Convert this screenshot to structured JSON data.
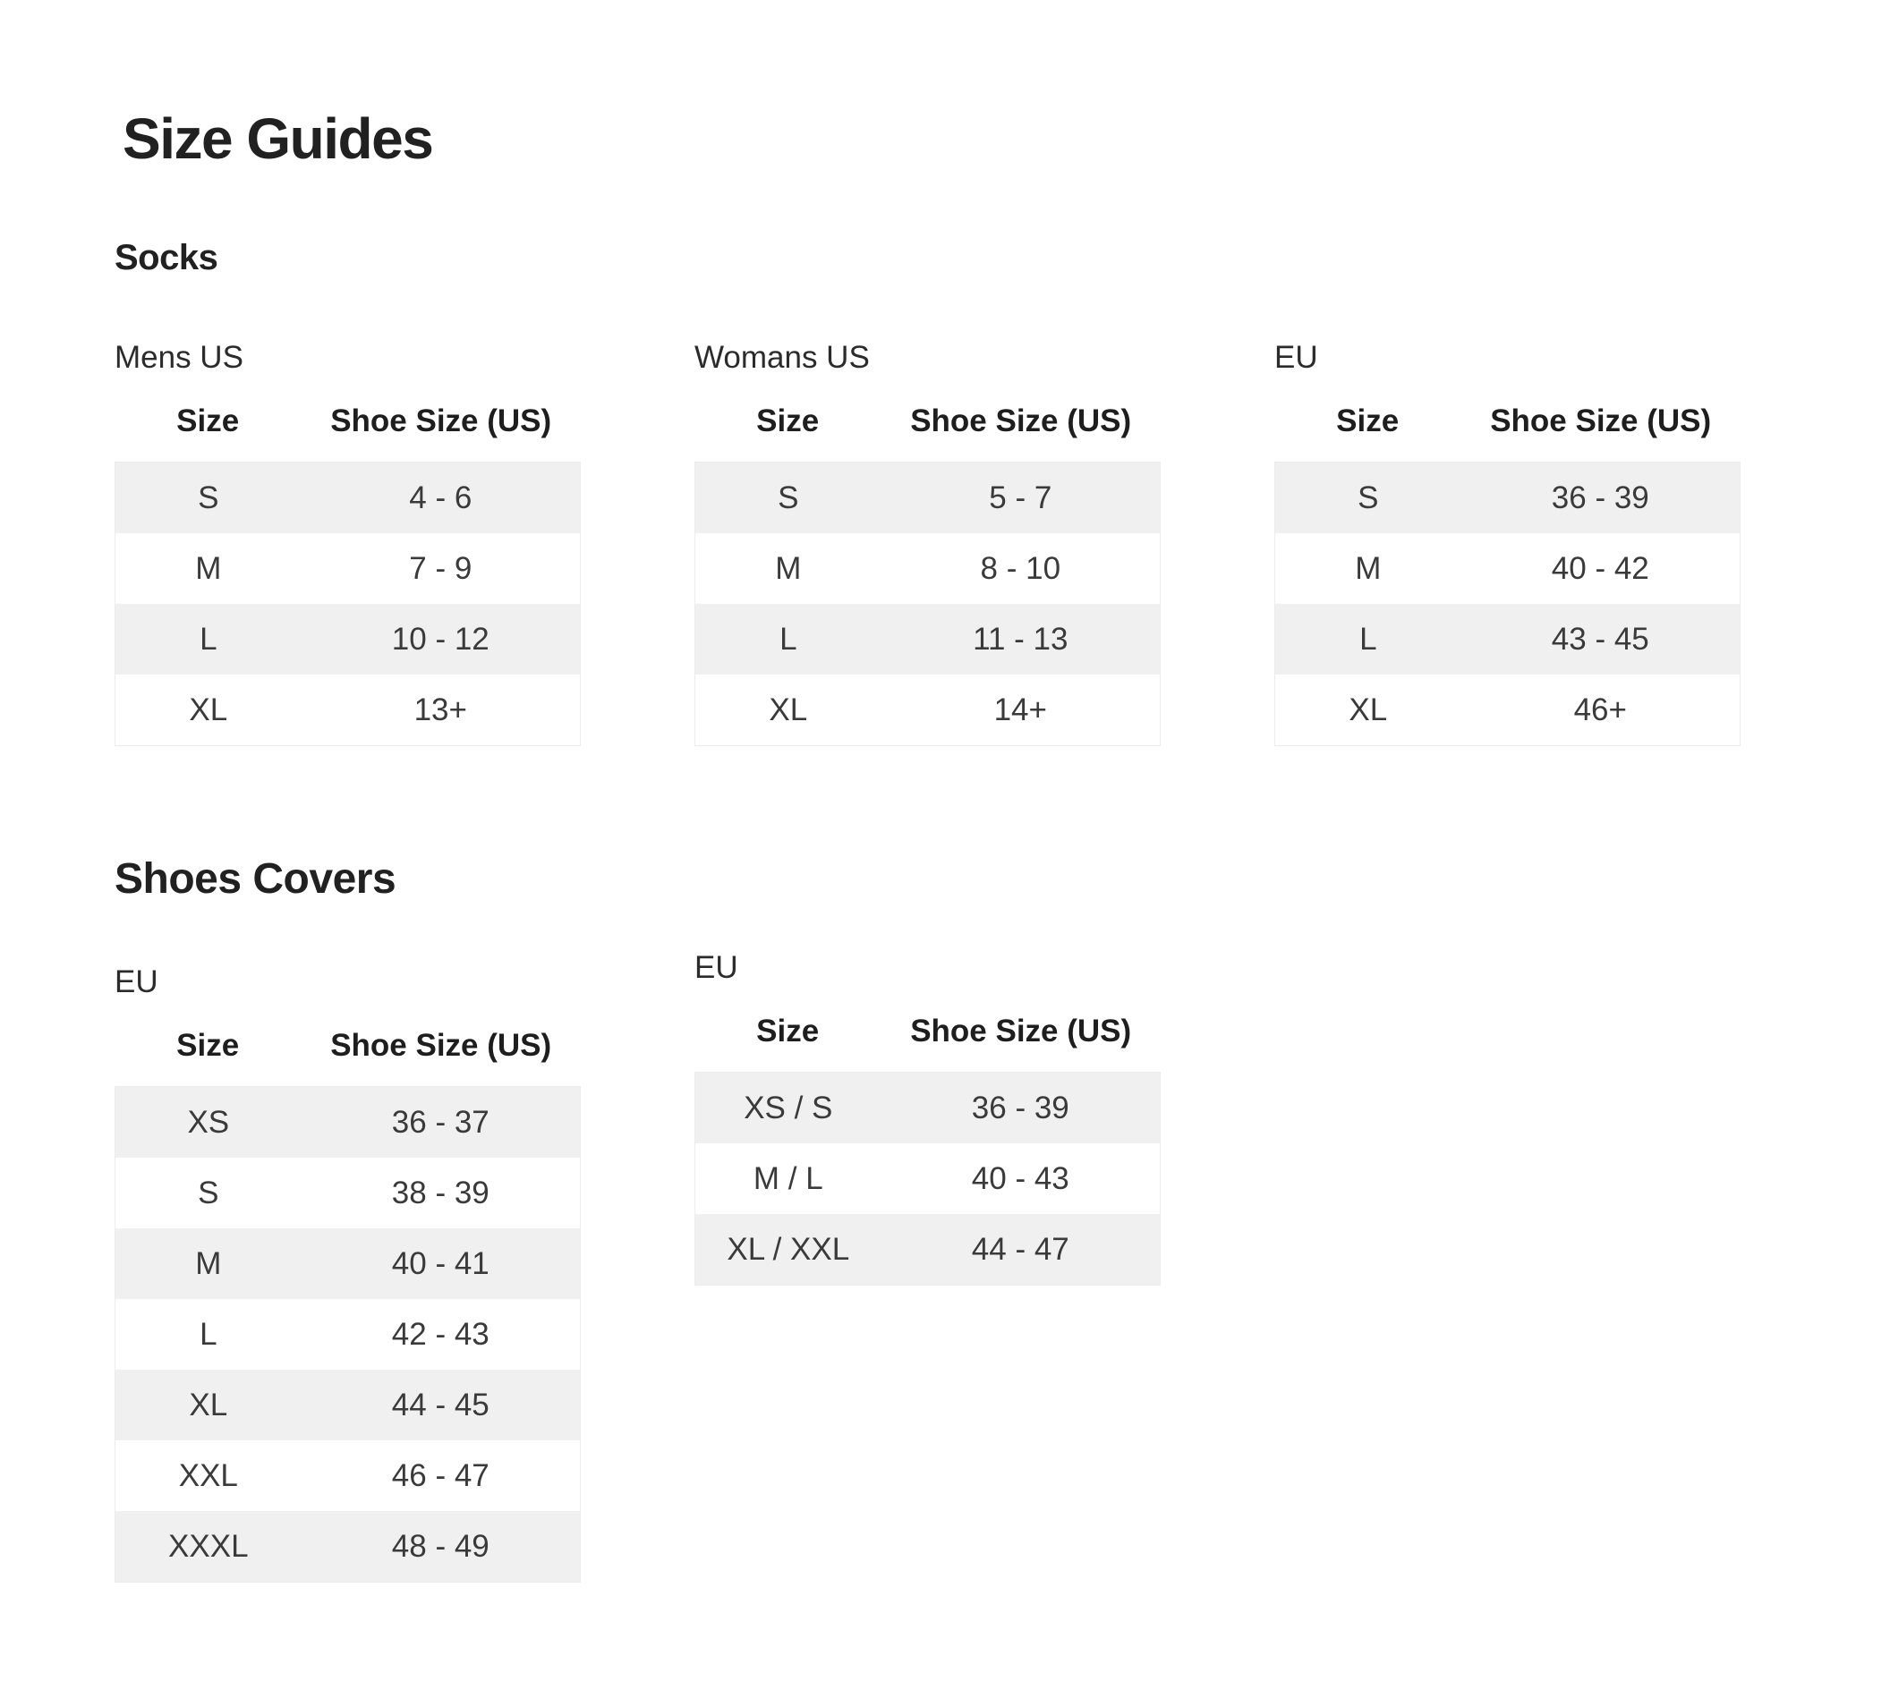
{
  "page": {
    "title": "Size Guides"
  },
  "colors": {
    "stripe": "#f0f0f0",
    "border": "#ececec",
    "heading_text": "#212121",
    "cell_text": "#3a3a3a"
  },
  "sections": [
    {
      "heading": "Socks",
      "tables": [
        {
          "caption": "Mens US",
          "columns": [
            "Size",
            "Shoe Size (US)"
          ],
          "rows": [
            [
              "S",
              "4 - 6"
            ],
            [
              "M",
              "7 - 9"
            ],
            [
              "L",
              "10 - 12"
            ],
            [
              "XL",
              "13+"
            ]
          ]
        },
        {
          "caption": "Womans US",
          "columns": [
            "Size",
            "Shoe Size (US)"
          ],
          "rows": [
            [
              "S",
              "5 - 7"
            ],
            [
              "M",
              "8 - 10"
            ],
            [
              "L",
              "11 - 13"
            ],
            [
              "XL",
              "14+"
            ]
          ]
        },
        {
          "caption": "EU",
          "columns": [
            "Size",
            "Shoe Size (US)"
          ],
          "rows": [
            [
              "S",
              "36 - 39"
            ],
            [
              "M",
              "40 - 42"
            ],
            [
              "L",
              "43 - 45"
            ],
            [
              "XL",
              "46+"
            ]
          ]
        }
      ]
    },
    {
      "heading": "Shoes Covers",
      "tables": [
        {
          "caption": "EU",
          "columns": [
            "Size",
            "Shoe Size (US)"
          ],
          "rows": [
            [
              "XS",
              "36 - 37"
            ],
            [
              "S",
              "38 - 39"
            ],
            [
              "M",
              "40 - 41"
            ],
            [
              "L",
              "42 - 43"
            ],
            [
              "XL",
              "44 - 45"
            ],
            [
              "XXL",
              "46 - 47"
            ],
            [
              "XXXL",
              "48 - 49"
            ]
          ]
        },
        {
          "caption": "EU",
          "columns": [
            "Size",
            "Shoe Size (US)"
          ],
          "rows": [
            [
              "XS / S",
              "36 - 39"
            ],
            [
              "M / L",
              "40 - 43"
            ],
            [
              "XL / XXL",
              "44 - 47"
            ]
          ]
        }
      ]
    }
  ]
}
